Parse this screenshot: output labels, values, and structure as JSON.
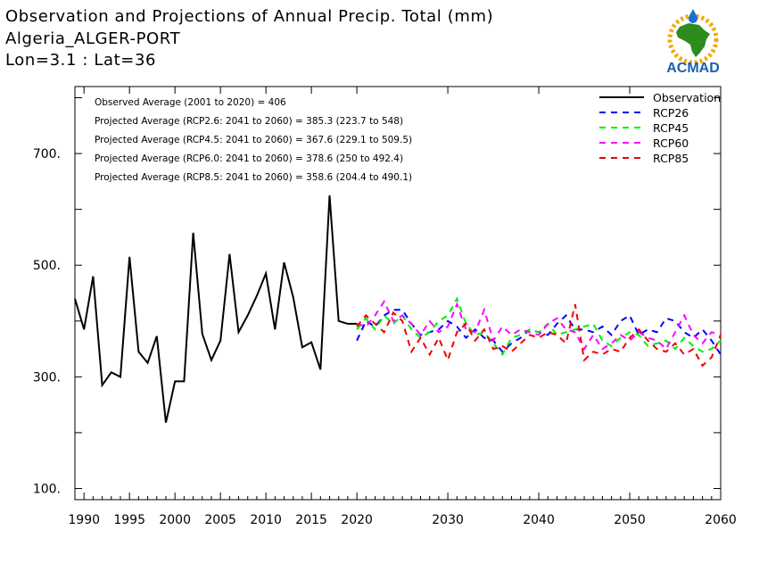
{
  "header": {
    "title_line1": "Observation and Projections of Annual Precip. Total (mm)",
    "title_line2": "Algeria_ALGER-PORT",
    "title_line3": "Lon=3.1 : Lat=36"
  },
  "logo": {
    "text": "ACMAD"
  },
  "stats": [
    "Observed Average (2001 to 2020) = 406",
    "Projected Average (RCP2.6: 2041 to 2060) = 385.3 (223.7 to 548)",
    "Projected Average (RCP4.5: 2041 to 2060) = 367.6 (229.1 to 509.5)",
    "Projected Average (RCP6.0: 2041 to 2060) = 378.6 (250 to 492.4)",
    "Projected Average (RCP8.5: 2041 to 2060) = 358.6 (204.4 to 490.1)"
  ],
  "chart_data": {
    "type": "line",
    "xlim": [
      1989,
      2060
    ],
    "ylim": [
      80,
      820
    ],
    "x_ticks": [
      1990,
      1995,
      2000,
      2005,
      2010,
      2015,
      2020,
      2030,
      2040,
      2050,
      2060
    ],
    "x_tick_labels": [
      "1990",
      "1995",
      "2000",
      "2005",
      "2010",
      "2015",
      "2020",
      "2030",
      "2040",
      "2050",
      "2060"
    ],
    "y_ticks": [
      100,
      300,
      500,
      700
    ],
    "y_tick_labels": [
      "100.",
      "300.",
      "500.",
      "700."
    ],
    "y_minor_ticks": [
      200,
      400,
      600,
      800
    ],
    "legend_position": "top-right",
    "series": [
      {
        "name": "Observation",
        "color": "#000000",
        "style": "solid",
        "x": [
          1989,
          1990,
          1991,
          1992,
          1993,
          1994,
          1995,
          1996,
          1997,
          1998,
          1999,
          2000,
          2001,
          2002,
          2003,
          2004,
          2005,
          2006,
          2007,
          2008,
          2009,
          2010,
          2011,
          2012,
          2013,
          2014,
          2015,
          2016,
          2017,
          2018,
          2019,
          2020
        ],
        "y": [
          440,
          385,
          480,
          285,
          308,
          300,
          515,
          345,
          325,
          373,
          218,
          292,
          292,
          558,
          377,
          330,
          365,
          520,
          380,
          410,
          445,
          485,
          385,
          505,
          443,
          353,
          362,
          313,
          625,
          400,
          395,
          395
        ]
      },
      {
        "name": "RCP26",
        "color": "#0000ff",
        "style": "dashed",
        "x": [
          2020,
          2021,
          2022,
          2023,
          2024,
          2025,
          2026,
          2027,
          2028,
          2029,
          2030,
          2031,
          2032,
          2033,
          2034,
          2035,
          2036,
          2037,
          2038,
          2039,
          2040,
          2041,
          2042,
          2043,
          2044,
          2045,
          2046,
          2047,
          2048,
          2049,
          2050,
          2051,
          2052,
          2053,
          2054,
          2055,
          2056,
          2057,
          2058,
          2059,
          2060
        ],
        "y": [
          365,
          400,
          390,
          410,
          420,
          420,
          395,
          375,
          380,
          385,
          400,
          390,
          370,
          385,
          370,
          365,
          345,
          360,
          370,
          385,
          380,
          375,
          395,
          410,
          385,
          385,
          380,
          390,
          375,
          400,
          410,
          375,
          385,
          380,
          405,
          400,
          380,
          370,
          385,
          365,
          340
        ]
      },
      {
        "name": "RCP45",
        "color": "#00ee00",
        "style": "dashed",
        "x": [
          2020,
          2021,
          2022,
          2023,
          2024,
          2025,
          2026,
          2027,
          2028,
          2029,
          2030,
          2031,
          2032,
          2033,
          2034,
          2035,
          2036,
          2037,
          2038,
          2039,
          2040,
          2041,
          2042,
          2043,
          2044,
          2045,
          2046,
          2047,
          2048,
          2049,
          2050,
          2051,
          2052,
          2053,
          2054,
          2055,
          2056,
          2057,
          2058,
          2059,
          2060
        ],
        "y": [
          385,
          405,
          385,
          410,
          395,
          410,
          385,
          370,
          380,
          400,
          410,
          440,
          395,
          375,
          380,
          360,
          340,
          370,
          375,
          385,
          380,
          395,
          375,
          380,
          385,
          390,
          395,
          365,
          355,
          370,
          380,
          375,
          355,
          360,
          365,
          350,
          370,
          355,
          345,
          350,
          365
        ]
      },
      {
        "name": "RCP60",
        "color": "#ff00ff",
        "style": "dashed",
        "x": [
          2020,
          2021,
          2022,
          2023,
          2024,
          2025,
          2026,
          2027,
          2028,
          2029,
          2030,
          2031,
          2032,
          2033,
          2034,
          2035,
          2036,
          2037,
          2038,
          2039,
          2040,
          2041,
          2042,
          2043,
          2044,
          2045,
          2046,
          2047,
          2048,
          2049,
          2050,
          2051,
          2052,
          2053,
          2054,
          2055,
          2056,
          2057,
          2058,
          2059,
          2060
        ],
        "y": [
          395,
          390,
          410,
          435,
          400,
          410,
          395,
          375,
          400,
          380,
          390,
          430,
          385,
          380,
          420,
          365,
          390,
          375,
          385,
          380,
          375,
          395,
          405,
          385,
          380,
          350,
          375,
          350,
          360,
          375,
          365,
          380,
          370,
          365,
          350,
          380,
          410,
          375,
          360,
          380,
          375
        ]
      },
      {
        "name": "RCP85",
        "color": "#ee0000",
        "style": "dashed",
        "x": [
          2020,
          2021,
          2022,
          2023,
          2024,
          2025,
          2026,
          2027,
          2028,
          2029,
          2030,
          2031,
          2032,
          2033,
          2034,
          2035,
          2036,
          2037,
          2038,
          2039,
          2040,
          2041,
          2042,
          2043,
          2044,
          2045,
          2046,
          2047,
          2048,
          2049,
          2050,
          2051,
          2052,
          2053,
          2054,
          2055,
          2056,
          2057,
          2058,
          2059,
          2060
        ],
        "y": [
          390,
          410,
          395,
          380,
          415,
          400,
          345,
          370,
          340,
          370,
          330,
          380,
          395,
          365,
          385,
          350,
          355,
          345,
          360,
          375,
          370,
          380,
          375,
          360,
          430,
          330,
          345,
          340,
          350,
          345,
          370,
          385,
          365,
          350,
          345,
          360,
          340,
          350,
          320,
          335,
          375
        ]
      }
    ]
  }
}
